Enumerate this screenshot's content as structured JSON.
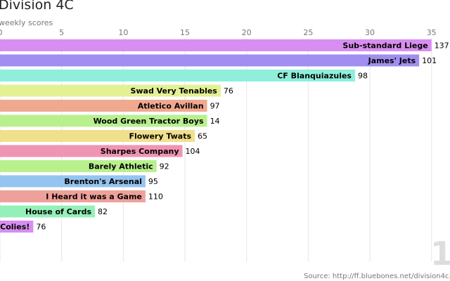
{
  "chart_data": {
    "type": "bar",
    "orientation": "horizontal",
    "title": "Division 4C",
    "subtitle": "weekly scores",
    "xlabel": "",
    "ylabel": "",
    "xlim": [
      0,
      36.5
    ],
    "x_ticks": [
      0,
      5,
      10,
      15,
      20,
      25,
      30,
      35
    ],
    "grid": true,
    "categories": [
      "Sub-standard Liege",
      "James' Jets",
      "CF Blanquiazules",
      "Swad Very Tenables",
      "Atletico Avillan",
      "Wood Green Tractor Boys",
      "Flowery Twats",
      "Sharpes Company",
      "Barely Athletic",
      "Brenton's Arsenal",
      "I Heard it was a Game",
      "House of Cards",
      "Colies!"
    ],
    "values": [
      35,
      34,
      28.8,
      17.9,
      16.8,
      16.8,
      15.8,
      14.8,
      12.7,
      11.8,
      11.8,
      7.7,
      2.7
    ],
    "value_labels": [
      "137",
      "101",
      "98",
      "76",
      "97",
      "14",
      "65",
      "104",
      "92",
      "95",
      "110",
      "82",
      "76"
    ],
    "colors": [
      "#d88ef0",
      "#a18ef0",
      "#8fefdb",
      "#e3f094",
      "#f0a98f",
      "#b8f08e",
      "#f0e08e",
      "#f094b4",
      "#b8f08e",
      "#94c4f0",
      "#f0a09a",
      "#94f0b8",
      "#d88ef0"
    ]
  },
  "frame_counter": "1",
  "source": "Source: http://ff.bluebones.net/division4c.php"
}
